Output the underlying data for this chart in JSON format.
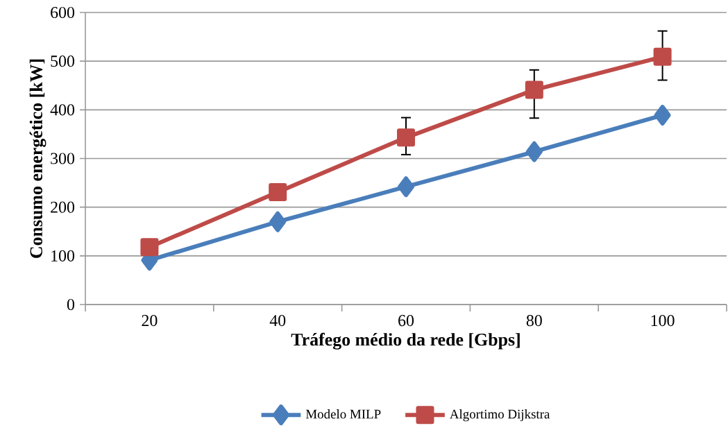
{
  "chart_data": {
    "type": "line",
    "xlabel": "Tráfego médio da rede [Gbps]",
    "ylabel": "Consumo energético [kW]",
    "categories": [
      "20",
      "40",
      "60",
      "80",
      "100"
    ],
    "series": [
      {
        "name": "Modelo MILP",
        "color": "#4a7ebb",
        "marker": "diamond",
        "values": [
          91,
          170,
          242,
          314,
          389
        ]
      },
      {
        "name": "Algortimo Dijkstra",
        "color": "#be4b48",
        "marker": "square",
        "values": [
          118,
          231,
          343,
          441,
          509
        ],
        "errors": [
          null,
          null,
          [
            308,
            384
          ],
          [
            383,
            482
          ],
          [
            461,
            562
          ]
        ]
      }
    ],
    "ylim": [
      0,
      600
    ],
    "yticks": [
      0,
      100,
      200,
      300,
      400,
      500,
      600
    ],
    "grid": "y",
    "legend": "bottom",
    "line_style": "solid"
  }
}
